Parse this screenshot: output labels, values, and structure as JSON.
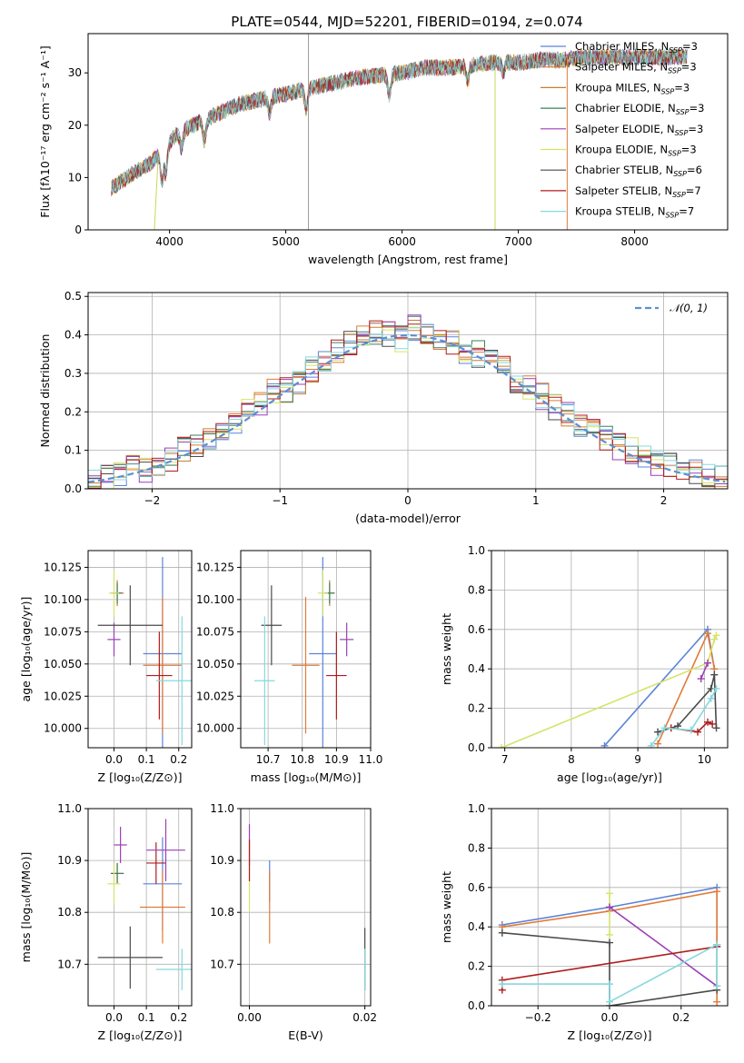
{
  "figure_title": "PLATE=0544, MJD=52201, FIBERID=0194, z=0.074",
  "colors": {
    "Chabrier MILES": "#5b84d6",
    "Salpeter MILES": "#e07b39",
    "Kroupa MILES": "#c77f2a",
    "Chabrier ELODIE": "#3f7f5f",
    "Salpeter ELODIE": "#9b3fb5",
    "Kroupa ELODIE": "#d6e36a",
    "Chabrier STELIB": "#4a4a4a",
    "Salpeter STELIB": "#b01c1c",
    "Kroupa STELIB": "#86d8df",
    "normal_curve": "#5b8fd6"
  },
  "chart_data": [
    {
      "id": "spectrum",
      "type": "line",
      "title": "PLATE=0544, MJD=52201, FIBERID=0194, z=0.074",
      "xlabel": "wavelength [Angstrom, rest frame]",
      "ylabel": "Flux [fλ10⁻¹⁷ erg cm⁻² s⁻¹ A⁻¹]",
      "xlim": [
        3300,
        8800
      ],
      "ylim": [
        0,
        37.5
      ],
      "xticks": [
        4000,
        5000,
        6000,
        7000,
        8000
      ],
      "yticks": [
        0,
        10,
        20,
        30
      ],
      "grid": false,
      "legend_position": "right",
      "legend": [
        "Chabrier MILES, N_SSP=3",
        "Salpeter MILES, N_SSP=3",
        "Kroupa MILES, N_SSP=3",
        "Chabrier ELODIE, N_SSP=3",
        "Salpeter ELODIE, N_SSP=3",
        "Kroupa ELODIE, N_SSP=3",
        "Chabrier STELIB, N_SSP=6",
        "Salpeter STELIB, N_SSP=7",
        "Kroupa STELIB, N_SSP=7"
      ],
      "continuum": {
        "x": [
          3500,
          3700,
          3850,
          3950,
          4050,
          4200,
          4400,
          4600,
          4800,
          5000,
          5200,
          5400,
          5600,
          5800,
          6000,
          6200,
          6400,
          6600,
          6800,
          7000,
          7200,
          7400,
          7600,
          7800,
          8000,
          8200,
          8400
        ],
        "y": [
          8,
          11,
          13,
          15.5,
          18,
          20,
          22,
          24,
          25,
          26,
          27,
          28,
          29,
          29.5,
          30,
          31,
          31,
          31.5,
          32,
          32,
          32.5,
          32.5,
          33,
          33,
          33,
          33,
          33
        ]
      }
    },
    {
      "id": "residuals",
      "type": "histogram",
      "xlabel": "(data-model)/error",
      "ylabel": "Normed distribution",
      "xlim": [
        -2.5,
        2.5
      ],
      "ylim": [
        0,
        0.51
      ],
      "xticks": [
        -2,
        -1,
        0,
        1,
        2
      ],
      "yticks": [
        0.0,
        0.1,
        0.2,
        0.3,
        0.4,
        0.5
      ],
      "grid": true,
      "legend_position": "top-right",
      "legend": [
        "𝒩(0, 1)"
      ],
      "bin_edges_start": -2.6,
      "bin_width": 0.1,
      "counts": [
        0.03,
        0.03,
        0.03,
        0.04,
        0.06,
        0.05,
        0.07,
        0.08,
        0.1,
        0.11,
        0.13,
        0.15,
        0.17,
        0.2,
        0.22,
        0.25,
        0.26,
        0.28,
        0.31,
        0.34,
        0.36,
        0.38,
        0.4,
        0.41,
        0.4,
        0.39,
        0.42,
        0.4,
        0.39,
        0.38,
        0.36,
        0.35,
        0.33,
        0.31,
        0.28,
        0.26,
        0.24,
        0.21,
        0.19,
        0.17,
        0.15,
        0.13,
        0.11,
        0.1,
        0.08,
        0.07,
        0.06,
        0.05,
        0.04,
        0.03,
        0.03,
        0.02
      ]
    },
    {
      "id": "age_vs_Z",
      "type": "scatter",
      "xlabel": "Z [log₁₀(Z/Z⊙)]",
      "ylabel": "age  [log₁₀(age/yr)]",
      "xlim": [
        -0.08,
        0.24
      ],
      "ylim": [
        9.985,
        10.138
      ],
      "xticks": [
        0.0,
        0.1,
        0.2
      ],
      "yticks": [
        10.0,
        10.025,
        10.05,
        10.075,
        10.1,
        10.125
      ],
      "grid": true,
      "points": [
        {
          "model": "Chabrier MILES",
          "x": 0.15,
          "y": 10.058,
          "xerr": 0.06,
          "yerr": 0.075
        },
        {
          "model": "Salpeter MILES",
          "x": 0.15,
          "y": 10.049,
          "xerr": 0.06,
          "yerr": 0.053
        },
        {
          "model": "Kroupa MILES",
          "x": 0.01,
          "y": 10.105,
          "xerr": 0.02,
          "yerr": 0.01
        },
        {
          "model": "Chabrier ELODIE",
          "x": 0.01,
          "y": 10.105,
          "xerr": 0.015,
          "yerr": 0.008
        },
        {
          "model": "Salpeter ELODIE",
          "x": 0.0,
          "y": 10.069,
          "xerr": 0.02,
          "yerr": 0.013
        },
        {
          "model": "Kroupa ELODIE",
          "x": 0.0,
          "y": 10.105,
          "xerr": 0.015,
          "yerr": 0.018
        },
        {
          "model": "Chabrier STELIB",
          "x": 0.05,
          "y": 10.08,
          "xerr": 0.1,
          "yerr": 0.031
        },
        {
          "model": "Salpeter STELIB",
          "x": 0.14,
          "y": 10.041,
          "xerr": 0.04,
          "yerr": 0.034
        },
        {
          "model": "Kroupa STELIB",
          "x": 0.21,
          "y": 10.037,
          "xerr": 0.08,
          "yerr": 0.05
        }
      ]
    },
    {
      "id": "age_vs_mass",
      "type": "scatter",
      "xlabel": "mass [log₁₀(M/M⊙)]",
      "ylabel": "",
      "xlim": [
        10.62,
        11.0
      ],
      "ylim": [
        9.985,
        10.138
      ],
      "xticks": [
        10.7,
        10.8,
        10.9,
        11.0
      ],
      "yticks": [
        10.0,
        10.025,
        10.05,
        10.075,
        10.1,
        10.125
      ],
      "grid": true,
      "points": [
        {
          "model": "Chabrier MILES",
          "x": 10.86,
          "y": 10.058,
          "xerr": 0.04,
          "yerr": 0.075
        },
        {
          "model": "Salpeter MILES",
          "x": 10.81,
          "y": 10.049,
          "xerr": 0.04,
          "yerr": 0.053
        },
        {
          "model": "Kroupa MILES",
          "x": 10.88,
          "y": 10.105,
          "xerr": 0.015,
          "yerr": 0.01
        },
        {
          "model": "Chabrier ELODIE",
          "x": 10.88,
          "y": 10.105,
          "xerr": 0.015,
          "yerr": 0.008
        },
        {
          "model": "Salpeter ELODIE",
          "x": 10.93,
          "y": 10.069,
          "xerr": 0.02,
          "yerr": 0.013
        },
        {
          "model": "Kroupa ELODIE",
          "x": 10.86,
          "y": 10.105,
          "xerr": 0.015,
          "yerr": 0.018
        },
        {
          "model": "Chabrier STELIB",
          "x": 10.71,
          "y": 10.08,
          "xerr": 0.03,
          "yerr": 0.031
        },
        {
          "model": "Salpeter STELIB",
          "x": 10.9,
          "y": 10.041,
          "xerr": 0.03,
          "yerr": 0.034
        },
        {
          "model": "Kroupa STELIB",
          "x": 10.69,
          "y": 10.037,
          "xerr": 0.03,
          "yerr": 0.05
        }
      ]
    },
    {
      "id": "weight_vs_age",
      "type": "line",
      "xlabel": "age  [log₁₀(age/yr)]",
      "ylabel": "mass weight",
      "xlim": [
        6.8,
        10.35
      ],
      "ylim": [
        0,
        1.0
      ],
      "xticks": [
        7,
        8,
        9,
        10
      ],
      "yticks": [
        0.0,
        0.2,
        0.4,
        0.6,
        0.8,
        1.0
      ],
      "grid": true,
      "series": [
        {
          "model": "Chabrier MILES",
          "x": [
            8.5,
            10.05,
            10.15
          ],
          "y": [
            0.01,
            0.6,
            0.4
          ]
        },
        {
          "model": "Salpeter MILES",
          "x": [
            9.3,
            10.05,
            10.15
          ],
          "y": [
            0.02,
            0.58,
            0.4
          ]
        },
        {
          "model": "Kroupa ELODIE",
          "x": [
            6.95,
            10.05,
            10.15,
            10.18
          ],
          "y": [
            0.0,
            0.43,
            0.55,
            0.57
          ]
        },
        {
          "model": "Chabrier STELIB",
          "x": [
            9.3,
            9.6,
            10.1,
            10.15,
            10.18
          ],
          "y": [
            0.08,
            0.11,
            0.3,
            0.37,
            0.1
          ]
        },
        {
          "model": "Salpeter STELIB",
          "x": [
            9.5,
            9.9,
            10.05,
            10.12
          ],
          "y": [
            0.1,
            0.08,
            0.13,
            0.12
          ]
        },
        {
          "model": "Kroupa STELIB",
          "x": [
            9.2,
            9.4,
            9.8,
            10.1,
            10.18
          ],
          "y": [
            0.01,
            0.1,
            0.09,
            0.25,
            0.3
          ]
        },
        {
          "model": "Salpeter ELODIE",
          "x": [
            9.95,
            10.05
          ],
          "y": [
            0.35,
            0.43
          ]
        }
      ]
    },
    {
      "id": "mass_vs_Z",
      "type": "scatter",
      "xlabel": "Z [log₁₀(Z/Z⊙)]",
      "ylabel": "mass [log₁₀(M/M⊙)]",
      "xlim": [
        -0.08,
        0.24
      ],
      "ylim": [
        10.62,
        11.0
      ],
      "xticks": [
        0.0,
        0.1,
        0.2
      ],
      "yticks": [
        10.7,
        10.8,
        10.9,
        11.0
      ],
      "grid": true,
      "points": [
        {
          "model": "Chabrier MILES",
          "x": 0.15,
          "y": 10.855,
          "xerr": 0.06,
          "yerr": 0.09
        },
        {
          "model": "Salpeter MILES",
          "x": 0.15,
          "y": 10.81,
          "xerr": 0.07,
          "yerr": 0.07
        },
        {
          "model": "Kroupa MILES",
          "x": 0.01,
          "y": 10.875,
          "xerr": 0.02,
          "yerr": 0.02
        },
        {
          "model": "Chabrier ELODIE",
          "x": 0.01,
          "y": 10.875,
          "xerr": 0.02,
          "yerr": 0.02
        },
        {
          "model": "Salpeter ELODIE",
          "x": 0.02,
          "y": 10.93,
          "xerr": 0.02,
          "yerr": 0.035
        },
        {
          "model": "Kroupa ELODIE",
          "x": 0.0,
          "y": 10.855,
          "xerr": 0.02,
          "yerr": 0.04
        },
        {
          "model": "Chabrier STELIB",
          "x": 0.05,
          "y": 10.713,
          "xerr": 0.1,
          "yerr": 0.06
        },
        {
          "model": "Salpeter STELIB",
          "x": 0.13,
          "y": 10.895,
          "xerr": 0.03,
          "yerr": 0.04
        },
        {
          "model": "Kroupa STELIB",
          "x": 0.21,
          "y": 10.69,
          "xerr": 0.08,
          "yerr": 0.04
        },
        {
          "model": "Salpeter ELODIE",
          "x": 0.16,
          "y": 10.92,
          "xerr": 0.06,
          "yerr": 0.06
        }
      ]
    },
    {
      "id": "mass_vs_ebv",
      "type": "scatter",
      "xlabel": "E(B-V)",
      "ylabel": "",
      "xlim": [
        -0.0015,
        0.021
      ],
      "ylim": [
        10.62,
        11.0
      ],
      "xticks": [
        0.0,
        0.02
      ],
      "yticks": [
        10.7,
        10.8,
        10.9,
        11.0
      ],
      "grid": true,
      "points": [
        {
          "model": "Chabrier MILES",
          "x": 0.0035,
          "y": 10.86,
          "xerr": 0.0,
          "yerr": 0.04
        },
        {
          "model": "Salpeter MILES",
          "x": 0.0035,
          "y": 10.81,
          "xerr": 0.0,
          "yerr": 0.07
        },
        {
          "model": "Kroupa ELODIE",
          "x": 0.0,
          "y": 10.85,
          "xerr": 0.0,
          "yerr": 0.05
        },
        {
          "model": "Salpeter ELODIE",
          "x": 0.0,
          "y": 10.93,
          "xerr": 0.0,
          "yerr": 0.04
        },
        {
          "model": "Salpeter STELIB",
          "x": 0.0,
          "y": 10.9,
          "xerr": 0.0,
          "yerr": 0.04
        },
        {
          "model": "Chabrier STELIB",
          "x": 0.02,
          "y": 10.71,
          "xerr": 0.0,
          "yerr": 0.06
        },
        {
          "model": "Kroupa STELIB",
          "x": 0.02,
          "y": 10.69,
          "xerr": 0.0,
          "yerr": 0.04
        }
      ]
    },
    {
      "id": "weight_vs_Z",
      "type": "line",
      "xlabel": "Z [log₁₀(Z/Z⊙)]",
      "ylabel": "mass weight",
      "xlim": [
        -0.33,
        0.33
      ],
      "ylim": [
        0,
        1.0
      ],
      "xticks": [
        -0.2,
        0.0,
        0.2
      ],
      "yticks": [
        0.0,
        0.2,
        0.4,
        0.6,
        0.8,
        1.0
      ],
      "grid": true,
      "series": [
        {
          "model": "Chabrier MILES",
          "x": [
            -0.3,
            0.0,
            0.3,
            0.3
          ],
          "y": [
            0.41,
            0.5,
            0.6,
            0.3
          ]
        },
        {
          "model": "Salpeter MILES",
          "x": [
            -0.3,
            0.0,
            0.3,
            0.3
          ],
          "y": [
            0.4,
            0.48,
            0.58,
            0.02
          ]
        },
        {
          "model": "Kroupa ELODIE",
          "x": [
            0.0,
            0.0
          ],
          "y": [
            0.57,
            0.36
          ]
        },
        {
          "model": "Salpeter ELODIE",
          "x": [
            0.0,
            0.3
          ],
          "y": [
            0.5,
            0.1
          ]
        },
        {
          "model": "Chabrier STELIB",
          "x": [
            -0.3,
            0.0,
            0.0,
            0.3,
            0.3
          ],
          "y": [
            0.37,
            0.32,
            0.0,
            0.08,
            0.31
          ]
        },
        {
          "model": "Salpeter STELIB",
          "x": [
            -0.3,
            -0.3,
            0.3
          ],
          "y": [
            0.08,
            0.13,
            0.3
          ]
        },
        {
          "model": "Kroupa STELIB",
          "x": [
            -0.3,
            0.0,
            0.0,
            0.3,
            0.3
          ],
          "y": [
            0.11,
            0.11,
            0.02,
            0.31,
            0.1
          ]
        }
      ]
    }
  ]
}
